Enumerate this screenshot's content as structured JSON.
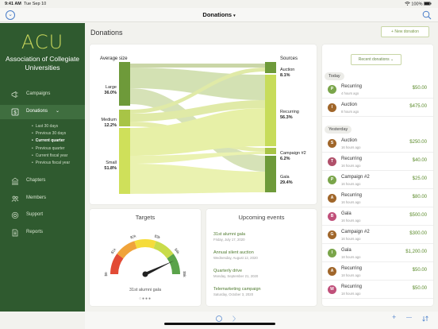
{
  "status": {
    "time": "9:41 AM",
    "date": "Tue Sep 10",
    "battery": "100%"
  },
  "nav": {
    "title": "Donations",
    "caret": "▾"
  },
  "sidebar": {
    "logo": "ACU",
    "org_name": "Association of Collegiate Universities",
    "items": [
      {
        "label": "Campaigns",
        "icon": "megaphone-icon"
      },
      {
        "label": "Donations",
        "icon": "dollar-icon",
        "chevron": "⌄"
      },
      {
        "label": "Chapters",
        "icon": "building-icon"
      },
      {
        "label": "Members",
        "icon": "people-icon"
      },
      {
        "label": "Support",
        "icon": "lifebuoy-icon"
      },
      {
        "label": "Reports",
        "icon": "document-icon"
      }
    ],
    "submenu": [
      "Last 30 days",
      "Previous 30 days",
      "Current quarter",
      "Previous quarter",
      "Current fiscal year",
      "Previous fiscal year"
    ],
    "submenu_current": 2
  },
  "main": {
    "title": "Donations",
    "new_button": "+ New donation"
  },
  "sankey": {
    "left_title": "Average size",
    "right_title": "Sources",
    "left": [
      {
        "name": "Large",
        "pct": "36.0%"
      },
      {
        "name": "Medium",
        "pct": "12.2%"
      },
      {
        "name": "Small",
        "pct": "51.8%"
      }
    ],
    "right": [
      {
        "name": "Auction",
        "pct": "8.1%"
      },
      {
        "name": "Recurring",
        "pct": "56.3%"
      },
      {
        "name": "Campaign #2",
        "pct": "6.2%"
      },
      {
        "name": "Gala",
        "pct": "29.4%"
      }
    ]
  },
  "targets": {
    "title": "Targets",
    "caption": "31st alumni gala",
    "dots": "○●●●",
    "ticks": [
      "$0",
      "$1k",
      "$2k",
      "$3k",
      "$4k",
      "$5k"
    ],
    "value": 4.3,
    "max": 5
  },
  "events": {
    "title": "Upcoming events",
    "items": [
      {
        "name": "31st alumni gala",
        "date": "Friday, July 17, 2020"
      },
      {
        "name": "Annual silent auction",
        "date": "Wednesday, August 12, 2020"
      },
      {
        "name": "Quarterly drive",
        "date": "Monday, September 21, 2020"
      },
      {
        "name": "Telemarketing campaign",
        "date": "Saturday, October 3, 2020"
      }
    ]
  },
  "recent": {
    "button": "Recent donations ⌄",
    "today_label": "Today",
    "yesterday_label": "Yesterday",
    "today": [
      {
        "initial": "P",
        "name": "Recurring",
        "time": "4 hours ago",
        "amount": "$50.00",
        "color": "#7aa54a"
      },
      {
        "initial": "I",
        "name": "Auction",
        "time": "8 hours ago",
        "amount": "$475.00",
        "color": "#a0662a"
      }
    ],
    "yesterday": [
      {
        "initial": "S",
        "name": "Auction",
        "time": "16 hours ago",
        "amount": "$250.00",
        "color": "#a0662a"
      },
      {
        "initial": "T",
        "name": "Recurring",
        "time": "16 hours ago",
        "amount": "$40.00",
        "color": "#b0506a"
      },
      {
        "initial": "P",
        "name": "Campaign #2",
        "time": "16 hours ago",
        "amount": "$25.00",
        "color": "#7aa54a"
      },
      {
        "initial": "A",
        "name": "Recurring",
        "time": "16 hours ago",
        "amount": "$80.00",
        "color": "#a0662a"
      },
      {
        "initial": "B",
        "name": "Gala",
        "time": "16 hours ago",
        "amount": "$500.00",
        "color": "#c0507a"
      },
      {
        "initial": "G",
        "name": "Campaign #2",
        "time": "16 hours ago",
        "amount": "$300.00",
        "color": "#a0662a"
      },
      {
        "initial": "I",
        "name": "Gala",
        "time": "18 hours ago",
        "amount": "$1,200.00",
        "color": "#7aa54a"
      },
      {
        "initial": "A",
        "name": "Recurring",
        "time": "18 hours ago",
        "amount": "$50.00",
        "color": "#a0662a"
      },
      {
        "initial": "W",
        "name": "Recurring",
        "time": "18 hours ago",
        "amount": "$50.00",
        "color": "#c0507a"
      }
    ]
  },
  "toolbar": {
    "plus": "+",
    "minus": "—"
  }
}
